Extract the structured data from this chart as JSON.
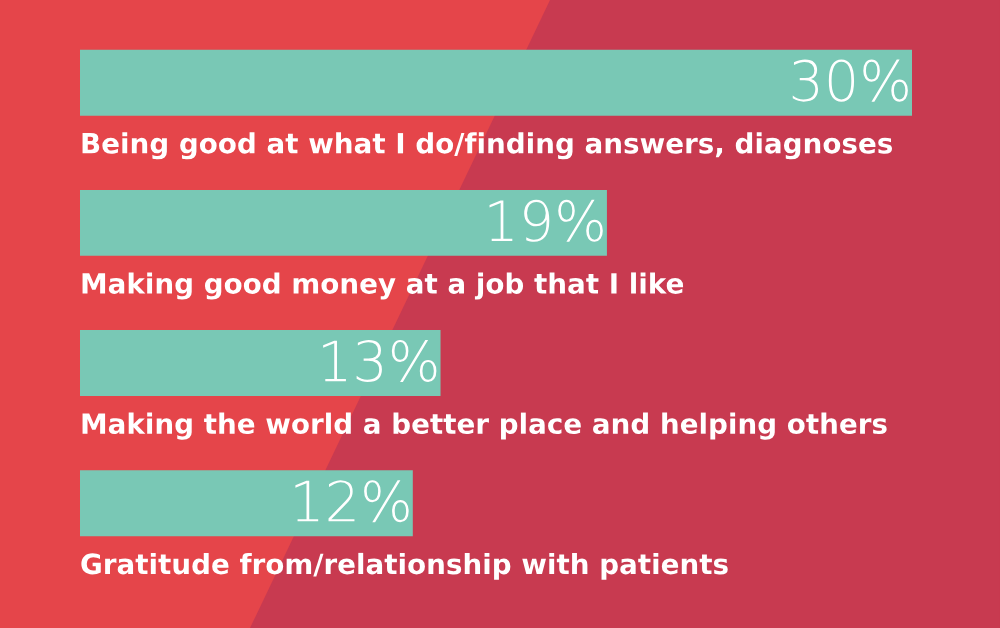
{
  "chart_data": {
    "type": "bar",
    "orientation": "horizontal",
    "categories": [
      "Being good at what I do/finding answers, diagnoses",
      "Making good money at a job that I like",
      "Making the world a better place and helping others",
      "Gratitude from/relationship with patients"
    ],
    "values": [
      30,
      19,
      13,
      12
    ],
    "value_labels": [
      "30%",
      "19%",
      "13%",
      "12%"
    ],
    "color": "#79c8b5"
  }
}
